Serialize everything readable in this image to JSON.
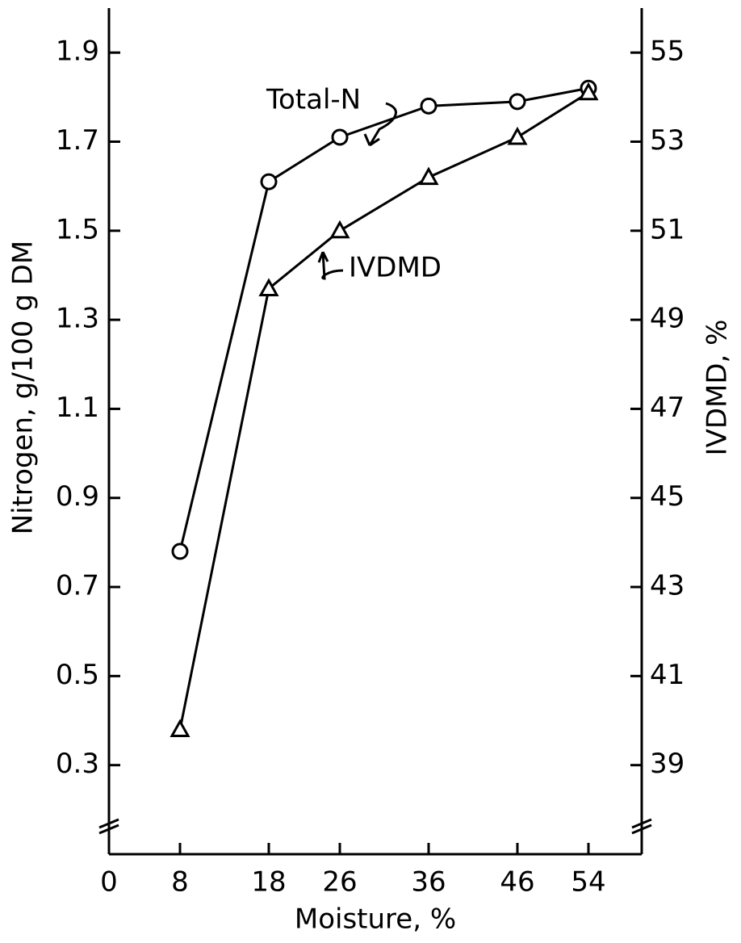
{
  "chart_data": {
    "type": "line",
    "x_label": "Moisture, %",
    "y_label": "Nitrogen, g/100 g DM",
    "y2_label": "IVDMD, %",
    "annotations": [
      "Total-N",
      "IVDMD"
    ],
    "x": [
      8,
      18,
      26,
      36,
      46,
      54
    ],
    "series": [
      {
        "name": "Total-N",
        "color": "#000000",
        "marker": "circle",
        "values": [
          0.78,
          1.61,
          1.71,
          1.78,
          1.79,
          1.82
        ]
      },
      {
        "name": "IVDMD",
        "color": "#000000",
        "marker": "triangle",
        "axis": "y2",
        "values": [
          39.8,
          49.7,
          51.0,
          52.2,
          53.1,
          54.1
        ]
      }
    ],
    "xlim": [
      0,
      60
    ],
    "xticks": [
      0,
      8,
      18,
      26,
      36,
      46,
      54
    ],
    "ylim": [
      0.1,
      2.0
    ],
    "yticks": [
      0.3,
      0.5,
      0.7,
      0.9,
      1.1,
      1.3,
      1.5,
      1.7,
      1.9
    ],
    "y2lim": [
      37,
      56
    ],
    "y2ticks": [
      39,
      41,
      43,
      45,
      47,
      49,
      51,
      53,
      55
    ],
    "grid": false
  }
}
